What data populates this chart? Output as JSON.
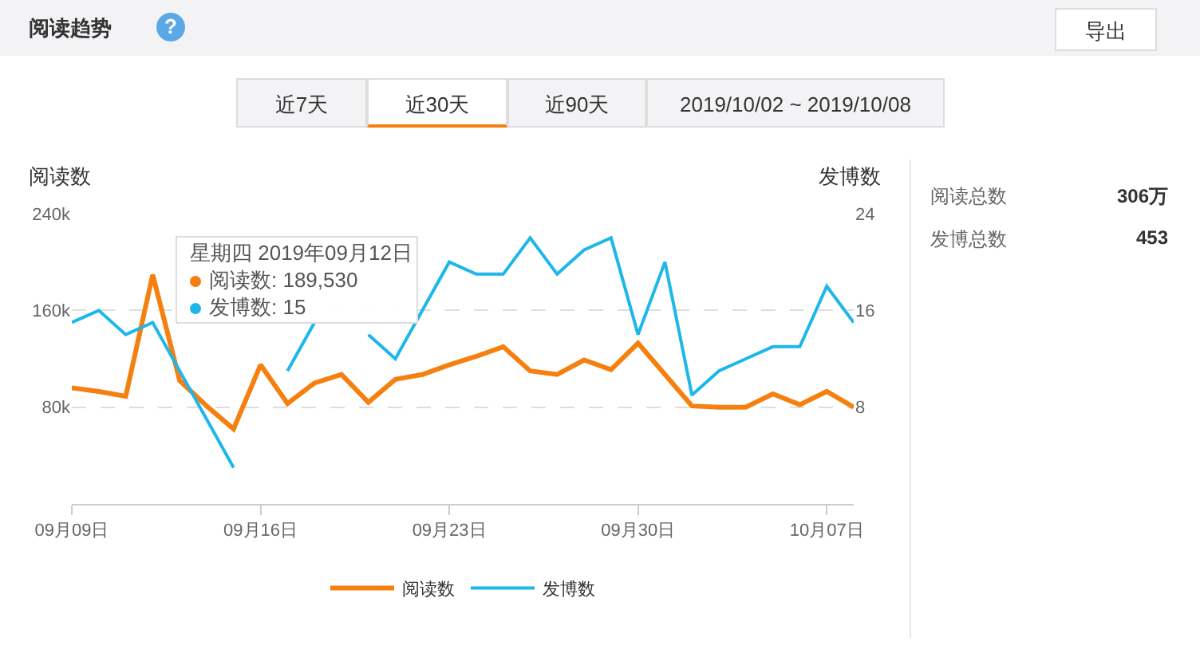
{
  "chart_data": {
    "type": "line",
    "title": "阅读趋势",
    "ylabel": "阅读数",
    "y2label": "发博数",
    "x": [
      "2019-09-09",
      "2019-09-10",
      "2019-09-11",
      "2019-09-12",
      "2019-09-13",
      "2019-09-14",
      "2019-09-15",
      "2019-09-16",
      "2019-09-17",
      "2019-09-18",
      "2019-09-19",
      "2019-09-20",
      "2019-09-21",
      "2019-09-22",
      "2019-09-23",
      "2019-09-24",
      "2019-09-25",
      "2019-09-26",
      "2019-09-27",
      "2019-09-28",
      "2019-09-29",
      "2019-09-30",
      "2019-10-01",
      "2019-10-02",
      "2019-10-03",
      "2019-10-04",
      "2019-10-05",
      "2019-10-06",
      "2019-10-07",
      "2019-10-08"
    ],
    "series": [
      {
        "name": "阅读数",
        "color": "#f5800f",
        "values": [
          96000,
          93000,
          89000,
          189530,
          102000,
          81000,
          62000,
          115000,
          83000,
          100000,
          107000,
          84000,
          103000,
          107000,
          115000,
          122000,
          130000,
          110000,
          107000,
          119000,
          111000,
          133000,
          107000,
          81000,
          80000,
          80000,
          91000,
          82000,
          93000,
          80000
        ]
      },
      {
        "name": "发博数",
        "color": "#1db7ea",
        "axis": "y2",
        "values": [
          15,
          16,
          14,
          15,
          11,
          7,
          3,
          null,
          11,
          15,
          null,
          14,
          12,
          16,
          20,
          19,
          19,
          22,
          19,
          21,
          22,
          14,
          20,
          9,
          11,
          12,
          13,
          13,
          18,
          15
        ]
      }
    ],
    "xlim": [
      "2019-09-09",
      "2019-10-08"
    ],
    "xticks": [
      {
        "value": "2019-09-09",
        "label": "09月09日"
      },
      {
        "value": "2019-09-16",
        "label": "09月16日"
      },
      {
        "value": "2019-09-23",
        "label": "09月23日"
      },
      {
        "value": "2019-09-30",
        "label": "09月30日"
      },
      {
        "value": "2019-10-07",
        "label": "10月07日"
      }
    ],
    "ylim": [
      0,
      240000
    ],
    "yticks": [
      {
        "value": 80000,
        "label": "80k"
      },
      {
        "value": 160000,
        "label": "160k"
      },
      {
        "value": 240000,
        "label": "240k"
      }
    ],
    "y2lim": [
      0,
      24
    ],
    "y2ticks": [
      8,
      16,
      24
    ],
    "grid": "y",
    "legend": "bottom",
    "annotations": [
      "星期四 2019年09月12日",
      "阅读数: 189,530",
      "发博数: 15",
      "近7天",
      "近30天",
      "近90天",
      "2019/10/02 ~ 2019/10/08",
      "导出",
      "阅读总数",
      "306万",
      "发博总数",
      "453",
      "?"
    ]
  }
}
